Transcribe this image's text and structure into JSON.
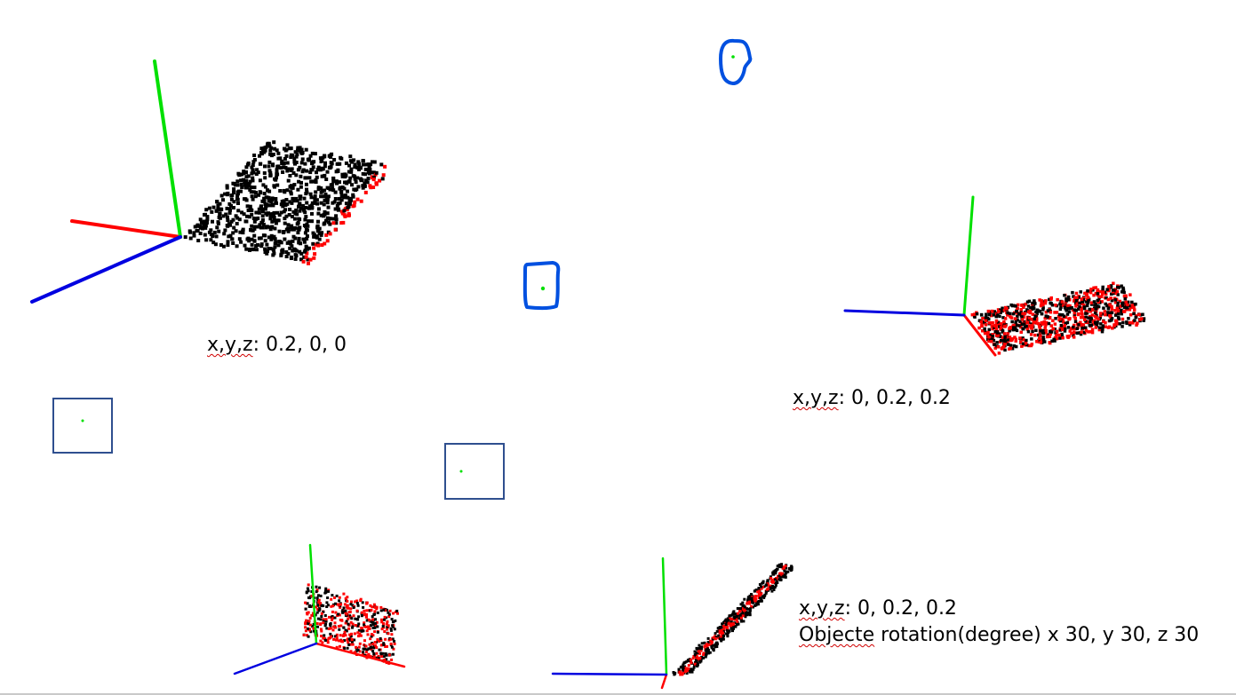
{
  "captions": {
    "first": {
      "prefix": "x,y,z",
      "values": ": 0.2, 0, 0"
    },
    "second": {
      "prefix": "x,y,z",
      "values": ": 0, 0.2, 0.2"
    },
    "third": {
      "line1_prefix": "x,y,z",
      "line1_values": ": 0, 0.2, 0.2",
      "line2_prefix": "Objecte",
      "line2_values": " rotation(degree) x 30, y 30, z 30"
    }
  },
  "colors": {
    "x_axis": "#ff0000",
    "y_axis": "#00e000",
    "z_axis": "#0000e0",
    "points_primary": "#000000",
    "points_secondary": "#ff0000",
    "frame_box": "#2f4f8f",
    "pen_marker": "#0050e0",
    "center_dot": "#00e000"
  }
}
